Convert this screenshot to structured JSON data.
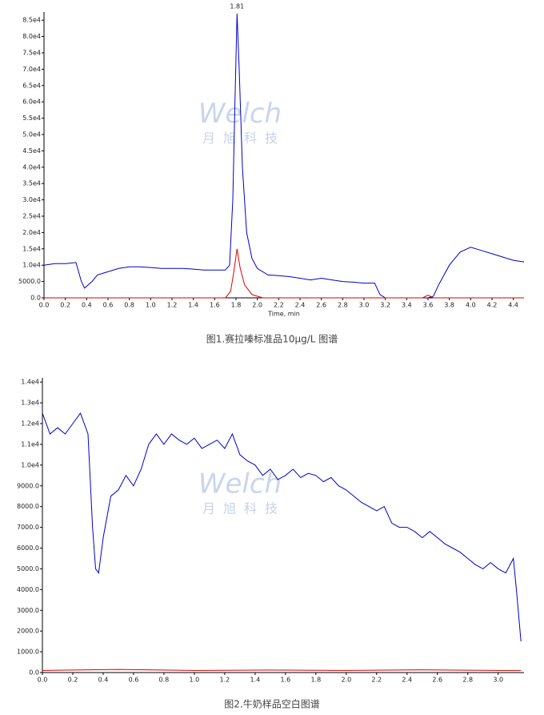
{
  "chart_data": [
    {
      "type": "line",
      "caption": "图1.赛拉嗪标准品10μg/L 图谱",
      "xlabel": "Time, min",
      "annotations": [
        {
          "x": 1.81,
          "text": "1.81"
        }
      ],
      "watermark": "Welch",
      "watermark_sub": "月旭科技",
      "xlim": [
        0,
        4.5
      ],
      "ylim": [
        0,
        87500
      ],
      "xticks": [
        {
          "value": 0,
          "label": "0.0"
        },
        0.2,
        0.4,
        0.6,
        0.8,
        {
          "value": 1,
          "label": "1.0"
        },
        1.2,
        1.4,
        1.6,
        1.8,
        {
          "value": 2,
          "label": "2.0"
        },
        2.2,
        2.4,
        2.6,
        2.8,
        {
          "value": 3,
          "label": "3.0"
        },
        3.2,
        3.4,
        3.6,
        3.8,
        {
          "value": 4,
          "label": "4.0"
        },
        4.2,
        4.4
      ],
      "yticks": [
        {
          "value": 0,
          "label": "0.0"
        },
        {
          "value": 5000,
          "label": "5000.0"
        },
        {
          "value": 10000,
          "label": "1.0e4"
        },
        {
          "value": 15000,
          "label": "1.5e4"
        },
        {
          "value": 20000,
          "label": "2.0e4"
        },
        {
          "value": 25000,
          "label": "2.5e4"
        },
        {
          "value": 30000,
          "label": "3.0e4"
        },
        {
          "value": 35000,
          "label": "3.5e4"
        },
        {
          "value": 40000,
          "label": "4.0e4"
        },
        {
          "value": 45000,
          "label": "4.5e4"
        },
        {
          "value": 50000,
          "label": "5.0e4"
        },
        {
          "value": 55000,
          "label": "5.5e4"
        },
        {
          "value": 60000,
          "label": "6.0e4"
        },
        {
          "value": 65000,
          "label": "6.5e4"
        },
        {
          "value": 70000,
          "label": "7.0e4"
        },
        {
          "value": 75000,
          "label": "7.5e4"
        },
        {
          "value": 80000,
          "label": "8.0e4"
        },
        {
          "value": 85000,
          "label": "8.5e4"
        }
      ],
      "series": [
        {
          "color": "#0000cc",
          "x": [
            0,
            0.1,
            0.2,
            0.3,
            0.35,
            0.38,
            0.45,
            0.5,
            0.6,
            0.7,
            0.8,
            0.9,
            1.0,
            1.1,
            1.2,
            1.3,
            1.4,
            1.5,
            1.6,
            1.7,
            1.74,
            1.77,
            1.79,
            1.81,
            1.83,
            1.86,
            1.9,
            1.95,
            2.0,
            2.1,
            2.2,
            2.3,
            2.4,
            2.5,
            2.6,
            2.7,
            2.8,
            2.9,
            3.0,
            3.1,
            3.15,
            3.2,
            3.3,
            3.4,
            3.5,
            3.6,
            3.65,
            3.7,
            3.8,
            3.9,
            4.0,
            4.1,
            4.2,
            4.3,
            4.4,
            4.5
          ],
          "values": [
            10000,
            10500,
            10500,
            10800,
            5000,
            3000,
            5000,
            7000,
            8000,
            9000,
            9500,
            9500,
            9300,
            9000,
            9000,
            9000,
            8800,
            8500,
            8500,
            8500,
            10000,
            30000,
            60000,
            87000,
            70000,
            40000,
            20000,
            12000,
            9000,
            7000,
            6800,
            6500,
            6000,
            5500,
            6000,
            5500,
            5000,
            4800,
            4500,
            4500,
            1000,
            0,
            0,
            0,
            0,
            0,
            500,
            4000,
            10000,
            14000,
            15500,
            14500,
            13500,
            12500,
            11500,
            11000
          ]
        },
        {
          "color": "#dd0000",
          "x": [
            0,
            1.7,
            1.75,
            1.78,
            1.81,
            1.84,
            1.88,
            1.95,
            2.05,
            3.55,
            3.6,
            3.65,
            4.5
          ],
          "values": [
            0,
            0,
            2000,
            8000,
            15000,
            9000,
            4000,
            1000,
            0,
            0,
            800,
            0,
            0
          ]
        }
      ]
    },
    {
      "type": "line",
      "caption": "图2.牛奶样品空白图谱",
      "watermark": "Welch",
      "watermark_sub": "月旭科技",
      "xlim": [
        0,
        3.17
      ],
      "ylim": [
        0,
        14200
      ],
      "xticks": [
        {
          "value": 0,
          "label": "0.0"
        },
        0.2,
        0.4,
        0.6,
        0.8,
        {
          "value": 1,
          "label": "1.0"
        },
        1.2,
        1.4,
        1.6,
        1.8,
        {
          "value": 2,
          "label": "2.0"
        },
        2.2,
        2.4,
        2.6,
        2.8,
        {
          "value": 3,
          "label": "3.0"
        }
      ],
      "yticks": [
        {
          "value": 0,
          "label": "0.0"
        },
        {
          "value": 1000,
          "label": "1000.0"
        },
        {
          "value": 2000,
          "label": "2000.0"
        },
        {
          "value": 3000,
          "label": "3000.0"
        },
        {
          "value": 4000,
          "label": "4000.0"
        },
        {
          "value": 5000,
          "label": "5000.0"
        },
        {
          "value": 6000,
          "label": "6000.0"
        },
        {
          "value": 7000,
          "label": "7000.0"
        },
        {
          "value": 8000,
          "label": "8000.0"
        },
        {
          "value": 9000,
          "label": "9000.0"
        },
        {
          "value": 10000,
          "label": "1.0e4"
        },
        {
          "value": 11000,
          "label": "1.1e4"
        },
        {
          "value": 12000,
          "label": "1.2e4"
        },
        {
          "value": 13000,
          "label": "1.3e4"
        },
        {
          "value": 14000,
          "label": "1.4e4"
        }
      ],
      "series": [
        {
          "color": "#0000cc",
          "x": [
            0,
            0.05,
            0.1,
            0.15,
            0.2,
            0.25,
            0.3,
            0.33,
            0.35,
            0.37,
            0.4,
            0.45,
            0.5,
            0.55,
            0.6,
            0.65,
            0.7,
            0.75,
            0.8,
            0.85,
            0.9,
            0.95,
            1.0,
            1.05,
            1.1,
            1.15,
            1.2,
            1.25,
            1.3,
            1.35,
            1.4,
            1.45,
            1.5,
            1.55,
            1.6,
            1.65,
            1.7,
            1.75,
            1.8,
            1.85,
            1.9,
            1.95,
            2.0,
            2.05,
            2.1,
            2.15,
            2.2,
            2.25,
            2.3,
            2.35,
            2.4,
            2.45,
            2.5,
            2.55,
            2.6,
            2.65,
            2.7,
            2.75,
            2.8,
            2.85,
            2.9,
            2.95,
            3.0,
            3.05,
            3.1,
            3.12,
            3.15
          ],
          "values": [
            12500,
            11500,
            11800,
            11500,
            12000,
            12500,
            11500,
            7000,
            5000,
            4800,
            6500,
            8500,
            8800,
            9500,
            9000,
            9800,
            11000,
            11500,
            11000,
            11500,
            11200,
            11000,
            11300,
            10800,
            11000,
            11200,
            10800,
            11500,
            10500,
            10200,
            10000,
            9500,
            9800,
            9300,
            9500,
            9800,
            9400,
            9600,
            9500,
            9200,
            9400,
            9000,
            8800,
            8500,
            8200,
            8000,
            7800,
            8000,
            7200,
            7000,
            7000,
            6800,
            6500,
            6800,
            6500,
            6200,
            6000,
            5800,
            5500,
            5200,
            5000,
            5300,
            5000,
            4800,
            5500,
            4000,
            1500
          ]
        },
        {
          "color": "#cc0000",
          "x": [
            0,
            0.5,
            1.0,
            1.5,
            2.0,
            2.5,
            3.0,
            3.15
          ],
          "values": [
            100,
            150,
            100,
            120,
            100,
            130,
            100,
            100
          ]
        }
      ]
    }
  ]
}
